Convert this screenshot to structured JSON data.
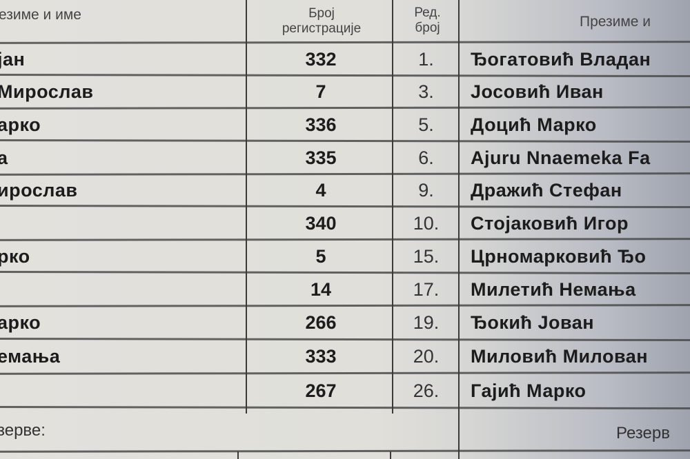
{
  "headers": {
    "left_name": "езиме и име",
    "reg_line1": "Број",
    "reg_line2": "регистрације",
    "ord_line1": "Ред.",
    "ord_line2": "број",
    "right_name": "Презиме и"
  },
  "rows": [
    {
      "left": "јан",
      "reg": "332",
      "ord": "1.",
      "right": "Ђогатовић Владан"
    },
    {
      "left": "Мирослав",
      "reg": "7",
      "ord": "3.",
      "right": "Јосовић Иван"
    },
    {
      "left": "арко",
      "reg": "336",
      "ord": "5.",
      "right": "Доцић Марко"
    },
    {
      "left": "а",
      "reg": "335",
      "ord": "6.",
      "right": "Ajuru Nnaemeka Fa"
    },
    {
      "left": "ирослав",
      "reg": "4",
      "ord": "9.",
      "right": "Дражић Стефан"
    },
    {
      "left": "",
      "reg": "340",
      "ord": "10.",
      "right": "Стојаковић Игор"
    },
    {
      "left": "рко",
      "reg": "5",
      "ord": "15.",
      "right": "Црномарковић Ђо"
    },
    {
      "left": "",
      "reg": "14",
      "ord": "17.",
      "right": "Милетић Немања"
    },
    {
      "left": "арко",
      "reg": "266",
      "ord": "19.",
      "right": "Ђокић Јован"
    },
    {
      "left": "емања",
      "reg": "333",
      "ord": "20.",
      "right": "Миловић Милован"
    },
    {
      "left": "",
      "reg": "267",
      "ord": "26.",
      "right": "Гајић Марко"
    }
  ],
  "reserves": {
    "left": "зерве:",
    "right": "Резерв"
  }
}
